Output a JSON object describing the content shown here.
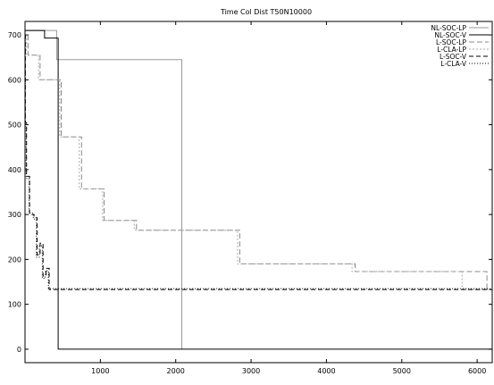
{
  "chart_data": {
    "type": "line",
    "title": "Time Col Dist T50N10000",
    "xlabel": "",
    "ylabel": "",
    "xlim": [
      0,
      6200
    ],
    "ylim": [
      -30,
      730
    ],
    "xticks": [
      1000,
      2000,
      3000,
      4000,
      5000,
      6000
    ],
    "yticks": [
      0,
      100,
      200,
      300,
      400,
      500,
      600,
      700
    ],
    "legend_position": "top-right",
    "grid": false,
    "series": [
      {
        "name": "NL-SOC-LP",
        "color": "#999999",
        "dash": "",
        "points": [
          [
            0,
            710
          ],
          [
            420,
            710
          ],
          [
            420,
            645
          ],
          [
            2080,
            645
          ],
          [
            2080,
            0
          ]
        ]
      },
      {
        "name": "NL-SOC-V",
        "color": "#000000",
        "dash": "",
        "points": [
          [
            0,
            710
          ],
          [
            260,
            710
          ],
          [
            260,
            693
          ],
          [
            440,
            693
          ],
          [
            440,
            0
          ],
          [
            6200,
            0
          ]
        ]
      },
      {
        "name": "L-SOC-LP",
        "color": "#888888",
        "dash": "6,3",
        "points": [
          [
            40,
            700
          ],
          [
            40,
            655
          ],
          [
            200,
            655
          ],
          [
            200,
            600
          ],
          [
            480,
            600
          ],
          [
            480,
            473
          ],
          [
            750,
            473
          ],
          [
            750,
            357
          ],
          [
            1050,
            357
          ],
          [
            1050,
            287
          ],
          [
            1480,
            287
          ],
          [
            1480,
            265
          ],
          [
            2850,
            265
          ],
          [
            2850,
            190
          ],
          [
            4380,
            190
          ],
          [
            4380,
            173
          ],
          [
            6130,
            173
          ],
          [
            6130,
            133
          ],
          [
            6200,
            133
          ]
        ]
      },
      {
        "name": "L-CLA-LP",
        "color": "#aaaaaa",
        "dash": "2,2",
        "points": [
          [
            20,
            700
          ],
          [
            20,
            655
          ],
          [
            180,
            655
          ],
          [
            180,
            600
          ],
          [
            460,
            600
          ],
          [
            460,
            473
          ],
          [
            720,
            473
          ],
          [
            720,
            357
          ],
          [
            1030,
            357
          ],
          [
            1030,
            287
          ],
          [
            1450,
            287
          ],
          [
            1450,
            265
          ],
          [
            2820,
            265
          ],
          [
            2820,
            190
          ],
          [
            4340,
            190
          ],
          [
            4340,
            173
          ],
          [
            5800,
            173
          ],
          [
            5800,
            133
          ],
          [
            6200,
            133
          ]
        ]
      },
      {
        "name": "L-SOC-V",
        "color": "#000000",
        "dash": "5,3",
        "points": [
          [
            5,
            700
          ],
          [
            5,
            505
          ],
          [
            20,
            505
          ],
          [
            20,
            385
          ],
          [
            60,
            385
          ],
          [
            60,
            300
          ],
          [
            120,
            300
          ],
          [
            120,
            293
          ],
          [
            160,
            293
          ],
          [
            160,
            210
          ],
          [
            200,
            210
          ],
          [
            200,
            236
          ],
          [
            240,
            236
          ],
          [
            240,
            163
          ],
          [
            280,
            163
          ],
          [
            280,
            180
          ],
          [
            320,
            180
          ],
          [
            320,
            133
          ],
          [
            6200,
            133
          ]
        ]
      },
      {
        "name": "L-CLA-V",
        "color": "#000000",
        "dash": "1,2",
        "points": [
          [
            3,
            700
          ],
          [
            3,
            495
          ],
          [
            15,
            495
          ],
          [
            15,
            380
          ],
          [
            55,
            380
          ],
          [
            55,
            303
          ],
          [
            110,
            303
          ],
          [
            110,
            290
          ],
          [
            150,
            290
          ],
          [
            150,
            205
          ],
          [
            190,
            205
          ],
          [
            190,
            230
          ],
          [
            230,
            230
          ],
          [
            230,
            158
          ],
          [
            270,
            158
          ],
          [
            270,
            175
          ],
          [
            310,
            175
          ],
          [
            310,
            135
          ],
          [
            6200,
            135
          ]
        ]
      }
    ]
  }
}
